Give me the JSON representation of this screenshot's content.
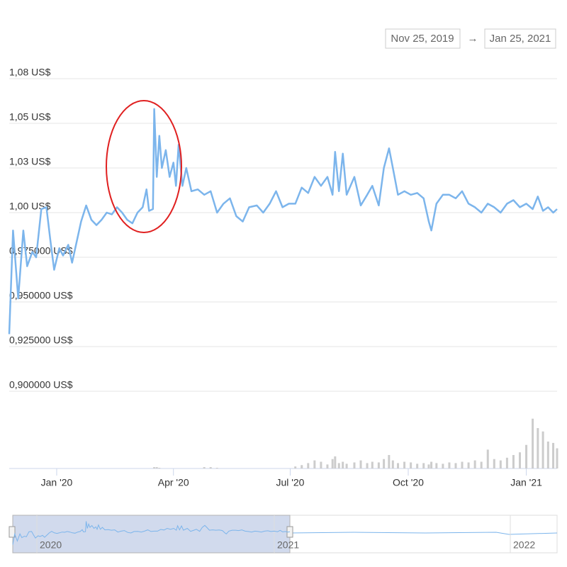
{
  "range_selector": {
    "from": "Nov 25, 2019",
    "separator": "→",
    "to": "Jan 25, 2021"
  },
  "navigator": {
    "labels": [
      "2020",
      "2021",
      "2022"
    ]
  },
  "chart_data": {
    "type": "line",
    "x": [
      "2019-11-25",
      "2019-11-28",
      "2019-12-02",
      "2019-12-06",
      "2019-12-09",
      "2019-12-13",
      "2019-12-16",
      "2019-12-20",
      "2019-12-24",
      "2019-12-27",
      "2019-12-30",
      "2020-01-03",
      "2020-01-06",
      "2020-01-10",
      "2020-01-13",
      "2020-01-17",
      "2020-01-20",
      "2020-01-24",
      "2020-01-28",
      "2020-02-01",
      "2020-02-05",
      "2020-02-09",
      "2020-02-13",
      "2020-02-17",
      "2020-02-21",
      "2020-02-25",
      "2020-02-29",
      "2020-03-04",
      "2020-03-08",
      "2020-03-11",
      "2020-03-13",
      "2020-03-16",
      "2020-03-17",
      "2020-03-19",
      "2020-03-21",
      "2020-03-23",
      "2020-03-26",
      "2020-03-29",
      "2020-04-01",
      "2020-04-03",
      "2020-04-05",
      "2020-04-08",
      "2020-04-11",
      "2020-04-15",
      "2020-04-20",
      "2020-04-25",
      "2020-04-30",
      "2020-05-05",
      "2020-05-10",
      "2020-05-15",
      "2020-05-20",
      "2020-05-25",
      "2020-05-30",
      "2020-06-05",
      "2020-06-10",
      "2020-06-15",
      "2020-06-20",
      "2020-06-25",
      "2020-06-30",
      "2020-07-05",
      "2020-07-10",
      "2020-07-15",
      "2020-07-20",
      "2020-07-25",
      "2020-07-30",
      "2020-08-03",
      "2020-08-05",
      "2020-08-08",
      "2020-08-11",
      "2020-08-14",
      "2020-08-20",
      "2020-08-25",
      "2020-08-30",
      "2020-09-03",
      "2020-09-08",
      "2020-09-12",
      "2020-09-16",
      "2020-09-19",
      "2020-09-23",
      "2020-09-28",
      "2020-10-03",
      "2020-10-08",
      "2020-10-13",
      "2020-10-17",
      "2020-10-19",
      "2020-10-23",
      "2020-10-28",
      "2020-11-02",
      "2020-11-07",
      "2020-11-12",
      "2020-11-17",
      "2020-11-22",
      "2020-11-27",
      "2020-12-02",
      "2020-12-07",
      "2020-12-12",
      "2020-12-17",
      "2020-12-22",
      "2020-12-27",
      "2021-01-01",
      "2021-01-06",
      "2021-01-10",
      "2021-01-14",
      "2021-01-18",
      "2021-01-22",
      "2021-01-25"
    ],
    "series": [
      {
        "color": "#7cb5ec",
        "values": [
          0.932,
          0.99,
          0.952,
          0.99,
          0.97,
          0.978,
          0.975,
          1.002,
          1.003,
          0.985,
          0.968,
          0.98,
          0.976,
          0.982,
          0.972,
          0.985,
          0.995,
          1.004,
          0.996,
          0.993,
          0.996,
          1.0,
          0.999,
          1.003,
          1.0,
          0.996,
          0.994,
          1.0,
          1.003,
          1.013,
          1.001,
          1.002,
          1.058,
          1.02,
          1.043,
          1.025,
          1.035,
          1.02,
          1.028,
          1.015,
          1.038,
          1.015,
          1.025,
          1.012,
          1.013,
          1.01,
          1.012,
          1.0,
          1.005,
          1.008,
          0.998,
          0.995,
          1.003,
          1.004,
          1.0,
          1.005,
          1.012,
          1.003,
          1.005,
          1.005,
          1.014,
          1.011,
          1.02,
          1.015,
          1.02,
          1.01,
          1.034,
          1.012,
          1.033,
          1.01,
          1.02,
          1.004,
          1.01,
          1.015,
          1.004,
          1.025,
          1.036,
          1.025,
          1.01,
          1.012,
          1.01,
          1.011,
          1.008,
          0.995,
          0.99,
          1.005,
          1.01,
          1.01,
          1.008,
          1.012,
          1.005,
          1.003,
          1.0,
          1.005,
          1.003,
          1.0,
          1.005,
          1.007,
          1.003,
          1.005,
          1.002,
          1.009,
          1.001,
          1.003,
          1.0,
          1.002
        ]
      }
    ],
    "volume": {
      "color": "#cccccc",
      "values": [
        0,
        0,
        0,
        0,
        0,
        0,
        0,
        0,
        0,
        0,
        0,
        0,
        0,
        0,
        0,
        0,
        0,
        0,
        0,
        0,
        0,
        0,
        0,
        0,
        0,
        0,
        0,
        0,
        0,
        0,
        0,
        0,
        2,
        2,
        1,
        0,
        0,
        0,
        0,
        0,
        0,
        0,
        0,
        0,
        0,
        2,
        2,
        1,
        0,
        0,
        0,
        0,
        0,
        0,
        0,
        0,
        0,
        0,
        0,
        3,
        5,
        8,
        12,
        10,
        6,
        14,
        18,
        8,
        10,
        7,
        9,
        12,
        8,
        10,
        9,
        14,
        20,
        12,
        8,
        10,
        9,
        7,
        8,
        6,
        10,
        8,
        7,
        9,
        8,
        10,
        9,
        12,
        10,
        28,
        14,
        12,
        16,
        20,
        24,
        35,
        74,
        60,
        55,
        40,
        38,
        30
      ]
    },
    "y2lim": [
      0,
      80
    ],
    "ylim": [
      0.9,
      1.075
    ],
    "yticks": [
      {
        "value": 0.9,
        "label": "0,900000 US$"
      },
      {
        "value": 0.925,
        "label": "0,925000 US$"
      },
      {
        "value": 0.95,
        "label": "0,950000 US$"
      },
      {
        "value": 0.975,
        "label": "0,975000 US$"
      },
      {
        "value": 1,
        "label": "1,00 US$"
      },
      {
        "value": 1.025,
        "label": "1,03 US$"
      },
      {
        "value": 1.05,
        "label": "1,05 US$"
      },
      {
        "value": 1.075,
        "label": "1,08 US$"
      }
    ],
    "xlim": [
      "2019-11-25",
      "2021-01-25"
    ],
    "xticks": [
      {
        "value": "2020-01-01",
        "label": "Jan '20"
      },
      {
        "value": "2020-04-01",
        "label": "Apr '20"
      },
      {
        "value": "2020-07-01",
        "label": "Jul '20"
      },
      {
        "value": "2020-10-01",
        "label": "Oct '20"
      },
      {
        "value": "2021-01-01",
        "label": "Jan '21"
      }
    ],
    "grid": true
  }
}
